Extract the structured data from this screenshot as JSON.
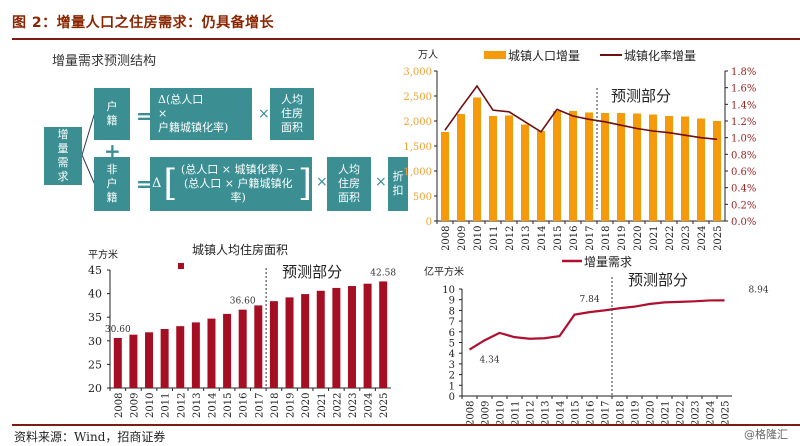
{
  "figure": {
    "title": "图 2：增量人口之住房需求：仍具备增长",
    "source": "资料来源：Wind，招商证券",
    "watermark": "@格隆汇"
  },
  "diagram": {
    "title": "增量需求预测结构",
    "root": "增\n量\n需\n求",
    "branch_hukou": "户\n籍",
    "branch_nonhukou": "非\n户\n籍",
    "plus": "+",
    "equals": "=",
    "times": "×",
    "hukou_formula": "Δ(总人口\n×\n户籍城镇化率)",
    "nonhukou_delta": "Δ",
    "nonhukou_formula_line1": "(总人口 × 城镇化率) −",
    "nonhukou_formula_line2": "(总人口 × 户籍城镇化率)",
    "per_capita_area": "人均\n住房\n面积",
    "discount": "折\n扣"
  },
  "colors": {
    "teal": "#3b8f93",
    "orange": "#f59a0b",
    "dark_red_line": "#6e0f10",
    "crimson_bar": "#a50f23",
    "crimson_line": "#b01030",
    "axis_orange_text": "#f0a030",
    "axis_red_text": "#9a1f1f"
  },
  "chart_data": [
    {
      "id": "urban-pop-increase",
      "type": "bar+line",
      "title": "",
      "categories": [
        "2008",
        "2009",
        "2010",
        "2011",
        "2012",
        "2013",
        "2014",
        "2015",
        "2016",
        "2017",
        "2018",
        "2019",
        "2020",
        "2021",
        "2022",
        "2023",
        "2024",
        "2025"
      ],
      "series": [
        {
          "name": "城镇人口增量",
          "type": "bar",
          "axis": "left",
          "values": [
            1780,
            2140,
            2470,
            2100,
            2110,
            1930,
            1800,
            2200,
            2200,
            2170,
            2160,
            2160,
            2150,
            2130,
            2100,
            2090,
            2050,
            2000
          ]
        },
        {
          "name": "城镇化率增量",
          "type": "line",
          "axis": "right",
          "values": [
            1.09,
            1.36,
            1.62,
            1.33,
            1.31,
            1.19,
            1.07,
            1.34,
            1.26,
            1.22,
            1.19,
            1.15,
            1.11,
            1.08,
            1.06,
            1.03,
            1.0,
            0.98
          ]
        }
      ],
      "ylabel": "万人",
      "ylim": [
        0,
        3000
      ],
      "yticks": [
        "0",
        "500",
        "1,000",
        "1,500",
        "2,000",
        "2,500",
        "3,000"
      ],
      "y2lim": [
        0,
        1.8
      ],
      "y2ticks": [
        "0.0%",
        "0.2%",
        "0.4%",
        "0.6%",
        "0.8%",
        "1.0%",
        "1.2%",
        "1.4%",
        "1.6%",
        "1.8%"
      ],
      "forecast_start_after": "2017",
      "annotation": "预测部分",
      "legend": "top",
      "grid": false
    },
    {
      "id": "per-capita-area",
      "type": "bar",
      "title": "城镇人均住房面积",
      "categories": [
        "2008",
        "2009",
        "2010",
        "2011",
        "2012",
        "2013",
        "2014",
        "2015",
        "2016",
        "2017",
        "2018",
        "2019",
        "2020",
        "2021",
        "2022",
        "2023",
        "2024",
        "2025"
      ],
      "values": [
        30.6,
        31.3,
        31.8,
        32.5,
        33.1,
        33.9,
        34.7,
        35.7,
        36.6,
        37.5,
        38.4,
        39.2,
        39.9,
        40.6,
        41.2,
        41.6,
        42.1,
        42.58
      ],
      "data_labels": [
        {
          "index": 0,
          "text": "30.60"
        },
        {
          "index": 8,
          "text": "36.60"
        },
        {
          "index": 17,
          "text": "42.58"
        }
      ],
      "ylabel": "平方米",
      "ylim": [
        20,
        45
      ],
      "yticks": [
        "20",
        "25",
        "30",
        "35",
        "40",
        "45"
      ],
      "forecast_start_after": "2017",
      "annotation": "预测部分",
      "legend": "top",
      "grid": false
    },
    {
      "id": "incremental-demand",
      "type": "line",
      "title": "",
      "categories": [
        "2008",
        "2009",
        "2010",
        "2011",
        "2012",
        "2013",
        "2014",
        "2015",
        "2016",
        "2017",
        "2018",
        "2019",
        "2020",
        "2021",
        "2022",
        "2023",
        "2024",
        "2025"
      ],
      "series": [
        {
          "name": "增量需求",
          "values": [
            4.34,
            5.2,
            5.9,
            5.5,
            5.35,
            5.4,
            5.6,
            7.6,
            7.84,
            8.0,
            8.2,
            8.35,
            8.6,
            8.75,
            8.8,
            8.85,
            8.93,
            8.94
          ]
        }
      ],
      "data_labels": [
        {
          "index": 0,
          "text": "4.34"
        },
        {
          "index": 8,
          "text": "7.84"
        },
        {
          "index": 17,
          "text": "8.94"
        }
      ],
      "ylabel": "亿平方米",
      "ylim": [
        0,
        10
      ],
      "yticks": [
        "0",
        "1",
        "2",
        "3",
        "4",
        "5",
        "6",
        "7",
        "8",
        "9",
        "10"
      ],
      "forecast_start_after": "2017",
      "annotation": "预测部分",
      "legend": "top",
      "grid": false
    }
  ]
}
